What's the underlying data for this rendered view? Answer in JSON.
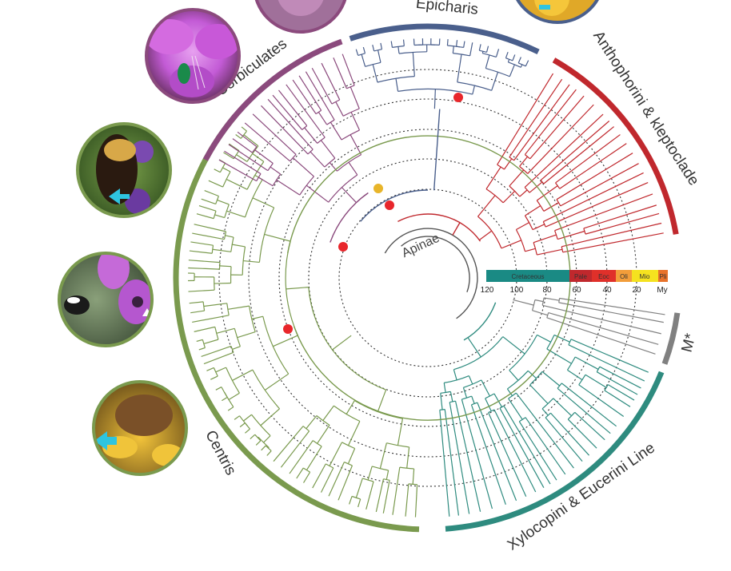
{
  "clades": [
    {
      "id": "epicharis",
      "label": "Epicharis",
      "color": "#4a5f8c"
    },
    {
      "id": "anthophorini",
      "label": "Anthophorini & kleptoclade",
      "color": "#c0282d"
    },
    {
      "id": "m",
      "label": "M*",
      "color": "#808080"
    },
    {
      "id": "xylocopini",
      "label": "Xylocopini & Eucerini Line",
      "color": "#2e8b7f"
    },
    {
      "id": "centris",
      "label": "Centris",
      "color": "#7a9a4e"
    },
    {
      "id": "corbiculates",
      "label": "Corbiculates",
      "color": "#8b4a7d"
    }
  ],
  "center_label": "Apinae",
  "timescale": {
    "periods": [
      {
        "label": "Cretaceous",
        "color": "#1a8a84"
      },
      {
        "label": "Pale",
        "color": "#c0282d"
      },
      {
        "label": "Eoc",
        "color": "#e0302a"
      },
      {
        "label": "Oli",
        "color": "#f29d3a"
      },
      {
        "label": "Mio",
        "color": "#f5e21f"
      },
      {
        "label": "Pli",
        "color": "#e8722a"
      }
    ],
    "ticks": [
      "120",
      "100",
      "80",
      "60",
      "40",
      "20"
    ],
    "unit": "My"
  },
  "node_markers": {
    "red": "#e8262b",
    "gold": "#e8b52a"
  },
  "photos": [
    {
      "id": "photo-top-left",
      "subject": "flower-bee",
      "ring_color": "#8b4a7d"
    },
    {
      "id": "photo-pink-flower",
      "subject": "green-bee-on-pink-flower",
      "ring_color": "#8b4a7d"
    },
    {
      "id": "photo-bumblebee",
      "subject": "bee-on-purple-flowers",
      "ring_color": "#7a9a4e"
    },
    {
      "id": "photo-flying-bee",
      "subject": "bee-flying-to-purple-flower",
      "ring_color": "#7a9a4e"
    },
    {
      "id": "photo-yellow-flower",
      "subject": "bee-on-yellow-flowers",
      "ring_color": "#7a9a4e"
    },
    {
      "id": "photo-top-right",
      "subject": "bee-on-yellow-flower",
      "ring_color": "#4a5f8c"
    }
  ]
}
